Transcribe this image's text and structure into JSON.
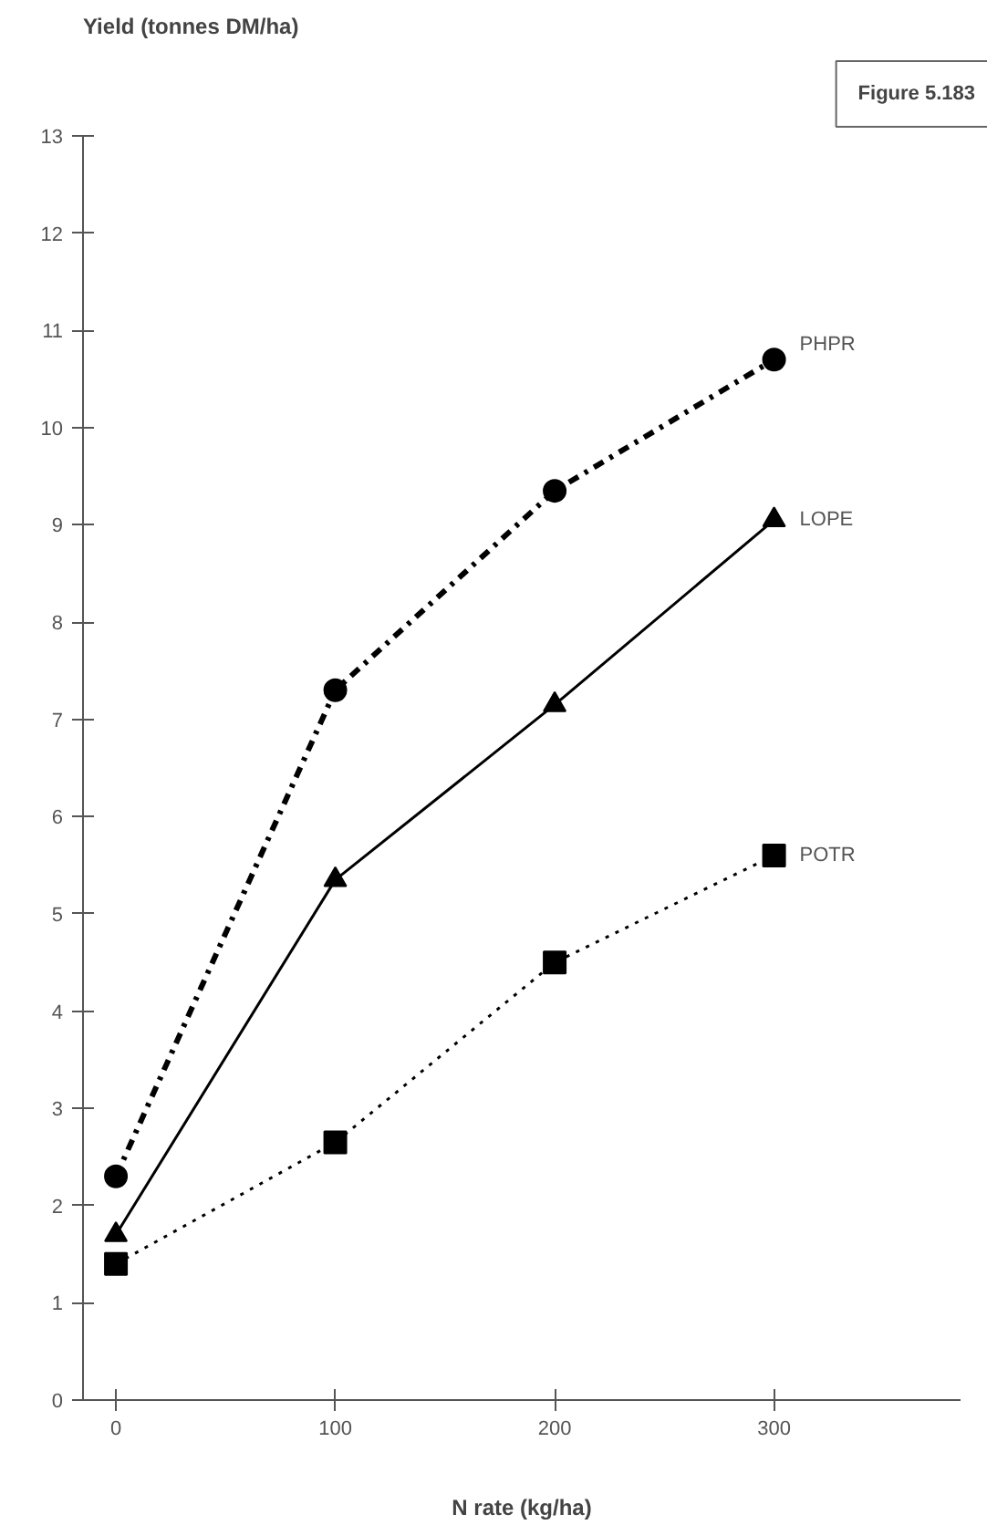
{
  "chart_data": {
    "type": "line",
    "ylabel": "Yield (tonnes DM/ha)",
    "xlabel": "N rate (kg/ha)",
    "annotations": [
      "Figure 5.183"
    ],
    "x": [
      0,
      100,
      200,
      300
    ],
    "series": [
      {
        "name": "PHPR",
        "color": "#000000",
        "values": [
          2.3,
          7.3,
          9.35,
          10.7
        ],
        "marker": "circle",
        "line_style": "dashdot"
      },
      {
        "name": "LOPE",
        "color": "#000000",
        "values": [
          1.7,
          5.35,
          7.15,
          9.05
        ],
        "marker": "triangle",
        "line_style": "solid"
      },
      {
        "name": "POTR",
        "color": "#000000",
        "values": [
          1.4,
          2.65,
          4.5,
          5.6
        ],
        "marker": "square",
        "line_style": "dotted"
      }
    ],
    "xlim": [
      -15,
      385
    ],
    "xticks": [
      0,
      100,
      200,
      300
    ],
    "ylim": [
      0,
      13
    ],
    "yticks": [
      0,
      1,
      2,
      3,
      4,
      5,
      6,
      7,
      8,
      9,
      10,
      11,
      12,
      13
    ],
    "grid": false
  }
}
